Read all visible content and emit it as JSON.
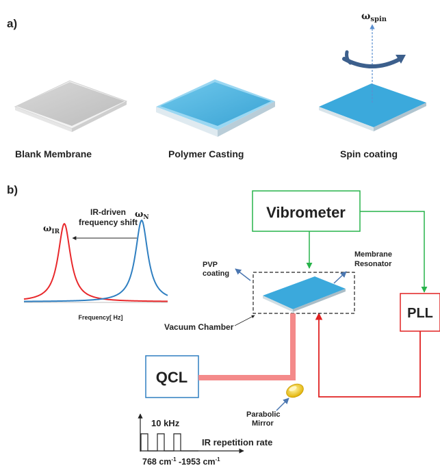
{
  "panel_a": {
    "label": "a)",
    "omega_symbol": "ω",
    "omega_sub": "spin",
    "steps": [
      "Blank Membrane",
      "Polymer Casting",
      "Spin coating"
    ]
  },
  "panel_b": {
    "label": "b)",
    "spectrum": {
      "omega_ir_symbol": "ω",
      "omega_ir_sub": "IR",
      "omega_n_symbol": "ω",
      "omega_n_sub": "N",
      "shift_line1": "IR-driven",
      "shift_line2": "frequency shift",
      "xaxis": "Frequency[ Hz]"
    },
    "vibrometer": "Vibrometer",
    "pll": "PLL",
    "qcl": "QCL",
    "pvp_line1": "PVP",
    "pvp_line2": "coating",
    "membrane_line1": "Membrane",
    "membrane_line2": "Resonator",
    "vacuum": "Vacuum Chamber",
    "mirror_line1": "Parabolic",
    "mirror_line2": "Mirror",
    "rep_freq": "10 kHz",
    "rep_label": "IR repetition rate",
    "wn_a": "768 cm",
    "wn_a_sup": "-1",
    "wn_sep": " -1953 cm",
    "wn_b_sup": "-1"
  },
  "colors": {
    "membrane_blue": "#4db3df",
    "red_curve": "#e8282b",
    "blue_curve": "#2f7fc1",
    "green_line": "#27b34a",
    "red_line": "#e02020",
    "laser": "#f48a8a",
    "arrow_blue": "#4a76b0"
  }
}
